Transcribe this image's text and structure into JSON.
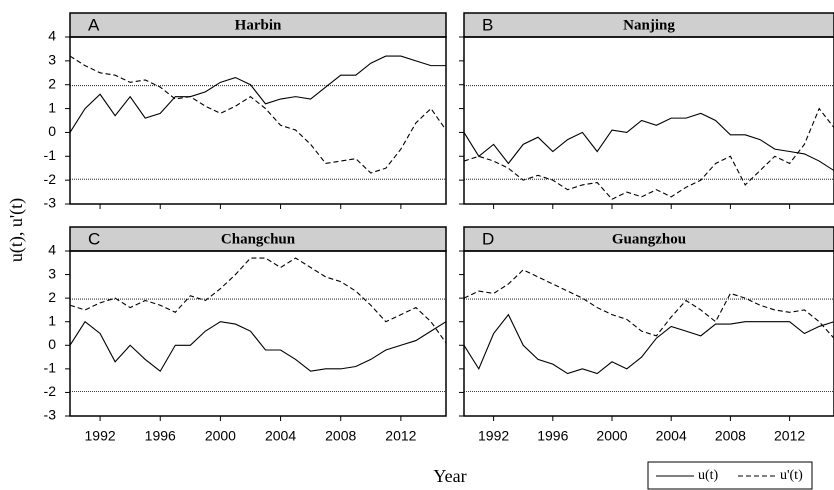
{
  "figure": {
    "ylabel": "u(t), u'(t)",
    "xlabel": "Year"
  },
  "chart_data": [
    {
      "type": "line",
      "panel": "A",
      "title": "Harbin",
      "x": [
        1990,
        1991,
        1992,
        1993,
        1994,
        1995,
        1996,
        1997,
        1998,
        1999,
        2000,
        2001,
        2002,
        2003,
        2004,
        2005,
        2006,
        2007,
        2008,
        2009,
        2010,
        2011,
        2012,
        2013,
        2014,
        2015
      ],
      "series": [
        {
          "name": "u(t)",
          "color": "#000000",
          "line_style": "solid",
          "values": [
            0,
            1.0,
            1.6,
            0.7,
            1.5,
            0.6,
            0.8,
            1.5,
            1.5,
            1.7,
            2.1,
            2.3,
            2.0,
            1.2,
            1.4,
            1.5,
            1.4,
            1.9,
            2.4,
            2.4,
            2.9,
            3.2,
            3.2,
            3.0,
            2.8,
            2.8
          ]
        },
        {
          "name": "u'(t)",
          "color": "#000000",
          "line_style": "dashed",
          "values": [
            3.2,
            2.8,
            2.5,
            2.4,
            2.1,
            2.2,
            1.9,
            1.4,
            1.5,
            1.1,
            0.8,
            1.1,
            1.5,
            1.0,
            0.3,
            0.1,
            -0.5,
            -1.3,
            -1.2,
            -1.1,
            -1.7,
            -1.5,
            -0.7,
            0.4,
            1.0,
            0.1
          ]
        }
      ],
      "reference_lines": [
        1.96,
        -1.96
      ],
      "xlim": [
        1990,
        2015
      ],
      "xticks": [
        1992,
        1996,
        2000,
        2004,
        2008,
        2012
      ],
      "ylim": [
        -3,
        4
      ],
      "yticks": [
        -3,
        -2,
        -1,
        0,
        1,
        2,
        3,
        4
      ]
    },
    {
      "type": "line",
      "panel": "B",
      "title": "Nanjing",
      "x": [
        1990,
        1991,
        1992,
        1993,
        1994,
        1995,
        1996,
        1997,
        1998,
        1999,
        2000,
        2001,
        2002,
        2003,
        2004,
        2005,
        2006,
        2007,
        2008,
        2009,
        2010,
        2011,
        2012,
        2013,
        2014,
        2015
      ],
      "series": [
        {
          "name": "u(t)",
          "color": "#000000",
          "line_style": "solid",
          "values": [
            0,
            -1.0,
            -0.5,
            -1.3,
            -0.5,
            -0.2,
            -0.8,
            -0.3,
            0,
            -0.8,
            0.1,
            0,
            0.5,
            0.3,
            0.6,
            0.6,
            0.8,
            0.5,
            -0.1,
            -0.1,
            -0.3,
            -0.7,
            -0.8,
            -0.9,
            -1.2,
            -1.6
          ]
        },
        {
          "name": "u'(t)",
          "color": "#000000",
          "line_style": "dashed",
          "values": [
            -1.2,
            -1.0,
            -1.2,
            -1.5,
            -2.0,
            -1.8,
            -2.0,
            -2.4,
            -2.2,
            -2.1,
            -2.8,
            -2.5,
            -2.7,
            -2.4,
            -2.7,
            -2.3,
            -2.0,
            -1.3,
            -1.0,
            -2.2,
            -1.6,
            -1.0,
            -1.3,
            -0.5,
            1.0,
            0.2
          ]
        }
      ],
      "reference_lines": [
        1.96,
        -1.96
      ],
      "xlim": [
        1990,
        2015
      ],
      "xticks": [
        1992,
        1996,
        2000,
        2004,
        2008,
        2012
      ],
      "ylim": [
        -3,
        4
      ],
      "yticks": [
        -3,
        -2,
        -1,
        0,
        1,
        2,
        3,
        4
      ]
    },
    {
      "type": "line",
      "panel": "C",
      "title": "Changchun",
      "x": [
        1990,
        1991,
        1992,
        1993,
        1994,
        1995,
        1996,
        1997,
        1998,
        1999,
        2000,
        2001,
        2002,
        2003,
        2004,
        2005,
        2006,
        2007,
        2008,
        2009,
        2010,
        2011,
        2012,
        2013,
        2014,
        2015
      ],
      "series": [
        {
          "name": "u(t)",
          "color": "#000000",
          "line_style": "solid",
          "values": [
            0,
            1.0,
            0.5,
            -0.7,
            0,
            -0.6,
            -1.1,
            0,
            0,
            0.6,
            1.0,
            0.9,
            0.6,
            -0.2,
            -0.2,
            -0.6,
            -1.1,
            -1.0,
            -1.0,
            -0.9,
            -0.6,
            -0.2,
            0,
            0.2,
            0.6,
            1.0
          ]
        },
        {
          "name": "u'(t)",
          "color": "#000000",
          "line_style": "dashed",
          "values": [
            1.7,
            1.5,
            1.8,
            2.0,
            1.6,
            1.9,
            1.7,
            1.4,
            2.1,
            1.9,
            2.4,
            3.0,
            3.7,
            3.7,
            3.3,
            3.7,
            3.3,
            2.9,
            2.7,
            2.3,
            1.7,
            1.0,
            1.3,
            1.6,
            1.0,
            0.1
          ]
        }
      ],
      "reference_lines": [
        1.96,
        -1.96
      ],
      "xlim": [
        1990,
        2015
      ],
      "xticks": [
        1992,
        1996,
        2000,
        2004,
        2008,
        2012
      ],
      "ylim": [
        -3,
        4
      ],
      "yticks": [
        -3,
        -2,
        -1,
        0,
        1,
        2,
        3,
        4
      ]
    },
    {
      "type": "line",
      "panel": "D",
      "title": "Guangzhou",
      "x": [
        1990,
        1991,
        1992,
        1993,
        1994,
        1995,
        1996,
        1997,
        1998,
        1999,
        2000,
        2001,
        2002,
        2003,
        2004,
        2005,
        2006,
        2007,
        2008,
        2009,
        2010,
        2011,
        2012,
        2013,
        2014,
        2015
      ],
      "series": [
        {
          "name": "u(t)",
          "color": "#000000",
          "line_style": "solid",
          "values": [
            0,
            -1.0,
            0.5,
            1.3,
            0,
            -0.6,
            -0.8,
            -1.2,
            -1.0,
            -1.2,
            -0.7,
            -1.0,
            -0.5,
            0.3,
            0.8,
            0.6,
            0.4,
            0.9,
            0.9,
            1.0,
            1.0,
            1.0,
            1.0,
            0.5,
            0.8,
            1.0
          ]
        },
        {
          "name": "u'(t)",
          "color": "#000000",
          "line_style": "dashed",
          "values": [
            2.0,
            2.3,
            2.2,
            2.6,
            3.2,
            2.9,
            2.6,
            2.3,
            2.0,
            1.6,
            1.3,
            1.1,
            0.6,
            0.4,
            1.2,
            1.9,
            1.5,
            1.0,
            2.2,
            2.0,
            1.7,
            1.5,
            1.4,
            1.5,
            1.0,
            0.3
          ]
        }
      ],
      "reference_lines": [
        1.96,
        -1.96
      ],
      "xlim": [
        1990,
        2015
      ],
      "xticks": [
        1992,
        1996,
        2000,
        2004,
        2008,
        2012
      ],
      "ylim": [
        -3,
        4
      ],
      "yticks": [
        -3,
        -2,
        -1,
        0,
        1,
        2,
        3,
        4
      ]
    }
  ]
}
